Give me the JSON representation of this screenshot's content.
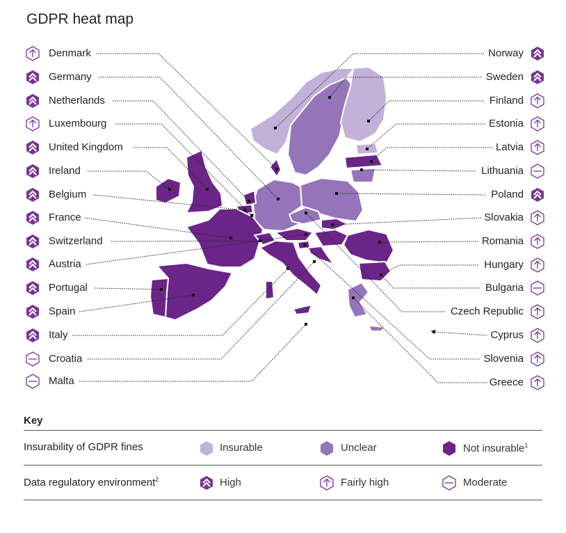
{
  "title": "GDPR heat map",
  "colors": {
    "insurable": "#c3b1d9",
    "unclear": "#9575b9",
    "not_insurable": "#6a2586",
    "icon": "#7a3394",
    "border": "#ffffff"
  },
  "left_countries": [
    {
      "name": "Denmark",
      "regulatory": "fairly-high"
    },
    {
      "name": "Germany",
      "regulatory": "high"
    },
    {
      "name": "Netherlands",
      "regulatory": "high"
    },
    {
      "name": "Luxembourg",
      "regulatory": "fairly-high"
    },
    {
      "name": "United Kingdom",
      "regulatory": "high"
    },
    {
      "name": "Ireland",
      "regulatory": "high"
    },
    {
      "name": "Belgium",
      "regulatory": "high"
    },
    {
      "name": "France",
      "regulatory": "high"
    },
    {
      "name": "Switzerland",
      "regulatory": "high"
    },
    {
      "name": "Austria",
      "regulatory": "high"
    },
    {
      "name": "Portugal",
      "regulatory": "high"
    },
    {
      "name": "Spain",
      "regulatory": "high"
    },
    {
      "name": "Italy",
      "regulatory": "high"
    },
    {
      "name": "Croatia",
      "regulatory": "moderate"
    },
    {
      "name": "Malta",
      "regulatory": "moderate"
    }
  ],
  "right_countries": [
    {
      "name": "Norway",
      "regulatory": "high"
    },
    {
      "name": "Sweden",
      "regulatory": "high"
    },
    {
      "name": "Finland",
      "regulatory": "fairly-high"
    },
    {
      "name": "Estonia",
      "regulatory": "fairly-high"
    },
    {
      "name": "Latvia",
      "regulatory": "fairly-high"
    },
    {
      "name": "Lithuania",
      "regulatory": "moderate"
    },
    {
      "name": "Poland",
      "regulatory": "high"
    },
    {
      "name": "Slovakia",
      "regulatory": "fairly-high"
    },
    {
      "name": "Romania",
      "regulatory": "fairly-high"
    },
    {
      "name": "Hungary",
      "regulatory": "fairly-high"
    },
    {
      "name": "Bulgaria",
      "regulatory": "moderate"
    },
    {
      "name": "Czech Republic",
      "regulatory": "fairly-high"
    },
    {
      "name": "Cyprus",
      "regulatory": "fairly-high"
    },
    {
      "name": "Slovenia",
      "regulatory": "fairly-high"
    },
    {
      "name": "Greece",
      "regulatory": "fairly-high"
    }
  ],
  "key": {
    "title": "Key",
    "insurability_label": "Insurability of GDPR fines",
    "insurable": "Insurable",
    "unclear": "Unclear",
    "not_insurable": "Not insurable",
    "not_insurable_sup": "1",
    "regulatory_label": "Data regulatory environment",
    "regulatory_sup": "2",
    "high": "High",
    "fairly_high": "Fairly high",
    "moderate": "Moderate"
  },
  "icon_names": {
    "high": "double-chevron-up-hexagon-icon",
    "fairly-high": "arrow-up-hexagon-icon",
    "moderate": "minus-hexagon-icon"
  }
}
